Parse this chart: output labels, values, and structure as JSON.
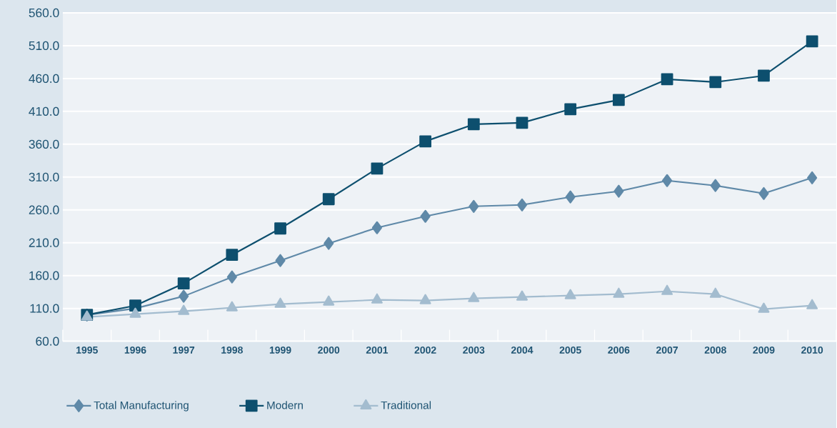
{
  "chart_data": {
    "type": "line",
    "categories": [
      "1995",
      "1996",
      "1997",
      "1998",
      "1999",
      "2000",
      "2001",
      "2002",
      "2003",
      "2004",
      "2005",
      "2006",
      "2007",
      "2008",
      "2009",
      "2010"
    ],
    "series": [
      {
        "name": "Total Manufacturing",
        "color": "#5f89a8",
        "marker": "diamond",
        "values": [
          100,
          110,
          128.5,
          157.8,
          182.8,
          208.9,
          232.8,
          250.2,
          265.4,
          267.6,
          279.6,
          288.3,
          304.6,
          297,
          285,
          308.9
        ]
      },
      {
        "name": "Modern",
        "color": "#0d4f6e",
        "marker": "square",
        "values": [
          100.2,
          114.3,
          148,
          191.5,
          231.7,
          276.3,
          323,
          364.3,
          390.4,
          392.6,
          413.3,
          427.4,
          458.9,
          454.6,
          464.3,
          516.5
        ]
      },
      {
        "name": "Traditional",
        "color": "#a3bccf",
        "marker": "triangle",
        "values": [
          97,
          101.3,
          105.7,
          111.1,
          116.5,
          119.8,
          123,
          122,
          125.2,
          127.4,
          129.6,
          131.7,
          136,
          131.7,
          108.9,
          114.3
        ]
      }
    ],
    "ylim": [
      60,
      560
    ],
    "yticks": [
      {
        "value": 60,
        "label": "60.0"
      },
      {
        "value": 110,
        "label": "110.0"
      },
      {
        "value": 160,
        "label": "160.0"
      },
      {
        "value": 210,
        "label": "210.0"
      },
      {
        "value": 260,
        "label": "260.0"
      },
      {
        "value": 310,
        "label": "310.0"
      },
      {
        "value": 360,
        "label": "360.0"
      },
      {
        "value": 410,
        "label": "410.0"
      },
      {
        "value": 460,
        "label": "460.0"
      },
      {
        "value": 510,
        "label": "510.0"
      },
      {
        "value": 560,
        "label": "560.0"
      }
    ],
    "grid": "y",
    "legend": "bottom left",
    "line_style": "solid"
  }
}
